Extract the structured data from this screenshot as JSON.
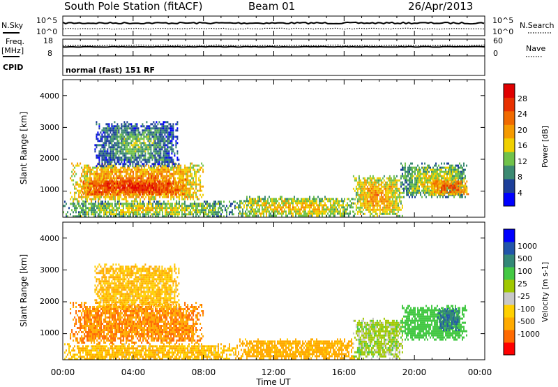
{
  "header": {
    "station": "South Pole Station (fitACF)",
    "beam": "Beam 01",
    "date": "26/Apr/2013"
  },
  "nsky_panel": {
    "left_label": "N.Sky",
    "left_ticks": [
      "10^5",
      "10^0"
    ],
    "right_ticks": [
      "10^5",
      "10^0"
    ],
    "right_label": "N.Search"
  },
  "freq_panel": {
    "left_label_1": "Freq.",
    "left_label_2": "[MHz]",
    "left_ticks": [
      "18",
      "8"
    ],
    "right_ticks": [
      "60",
      "0"
    ],
    "right_label": "Nave"
  },
  "cpid_panel": {
    "label": "CPID",
    "mode": "normal (fast) 151 RF"
  },
  "x_axis": {
    "title": "Time UT",
    "ticks": [
      "00:00",
      "04:00",
      "08:00",
      "12:00",
      "16:00",
      "20:00",
      "00:00"
    ]
  },
  "colors": {
    "power_scale": [
      "#0000ff",
      "#1d3f99",
      "#3c8a72",
      "#70c24a",
      "#f0d000",
      "#f59a00",
      "#f06a00",
      "#e83000",
      "#e00000"
    ],
    "velocity_scale": [
      "#ff0000",
      "#ff6a00",
      "#ffaa00",
      "#ffd000",
      "#c8c8c8",
      "#a0c800",
      "#44c844",
      "#338877",
      "#2255aa",
      "#0000ff"
    ]
  },
  "chart_data": [
    {
      "type": "heatmap",
      "title": "Power",
      "ylabel": "Slant Range [km]",
      "xlabel": "",
      "y_ticks": [
        "1000",
        "2000",
        "3000",
        "4000"
      ],
      "ylim": [
        180,
        4500
      ],
      "xlim_hours": [
        0,
        24
      ],
      "colorbar": {
        "label": "Power [dB]",
        "ticks": [
          "4",
          "8",
          "12",
          "16",
          "20",
          "24",
          "28"
        ],
        "range": [
          0,
          30
        ]
      },
      "regions": [
        {
          "t": [
            0.0,
            9.8
          ],
          "r": [
            200,
            700
          ],
          "level": 14
        },
        {
          "t": [
            0.4,
            8.0
          ],
          "r": [
            700,
            1900
          ],
          "level": 20
        },
        {
          "t": [
            1.0,
            7.0
          ],
          "r": [
            900,
            1400
          ],
          "level": 26
        },
        {
          "t": [
            1.8,
            6.6
          ],
          "r": [
            1800,
            3200
          ],
          "level": 10
        },
        {
          "t": [
            9.8,
            16.6
          ],
          "r": [
            200,
            850
          ],
          "level": 16
        },
        {
          "t": [
            16.5,
            19.3
          ],
          "r": [
            250,
            1500
          ],
          "level": 18
        },
        {
          "t": [
            19.2,
            23.0
          ],
          "r": [
            800,
            1900
          ],
          "level": 14
        },
        {
          "t": [
            20.8,
            23.1
          ],
          "r": [
            900,
            1400
          ],
          "level": 22
        }
      ]
    },
    {
      "type": "heatmap",
      "title": "Velocity",
      "ylabel": "Slant Range [km]",
      "xlabel": "Time UT",
      "y_ticks": [
        "1000",
        "2000",
        "3000",
        "4000"
      ],
      "ylim": [
        180,
        4500
      ],
      "xlim_hours": [
        0,
        24
      ],
      "colorbar": {
        "label": "Velocity [m s-1]",
        "ticks": [
          "1000",
          "500",
          "100",
          "25",
          "-25",
          "-100",
          "-500",
          "-1000"
        ]
      },
      "regions": [
        {
          "t": [
            0.0,
            9.8
          ],
          "r": [
            200,
            700
          ],
          "velocity": -100
        },
        {
          "t": [
            0.4,
            8.0
          ],
          "r": [
            700,
            2000
          ],
          "velocity": -500
        },
        {
          "t": [
            1.8,
            6.6
          ],
          "r": [
            1800,
            3200
          ],
          "velocity": -100
        },
        {
          "t": [
            9.8,
            16.6
          ],
          "r": [
            200,
            850
          ],
          "velocity": -150
        },
        {
          "t": [
            16.5,
            19.3
          ],
          "r": [
            250,
            1500
          ],
          "velocity": 60
        },
        {
          "t": [
            19.2,
            23.0
          ],
          "r": [
            800,
            1900
          ],
          "velocity": 300
        },
        {
          "t": [
            21.3,
            22.5
          ],
          "r": [
            1100,
            1800
          ],
          "velocity": 900
        }
      ]
    }
  ]
}
